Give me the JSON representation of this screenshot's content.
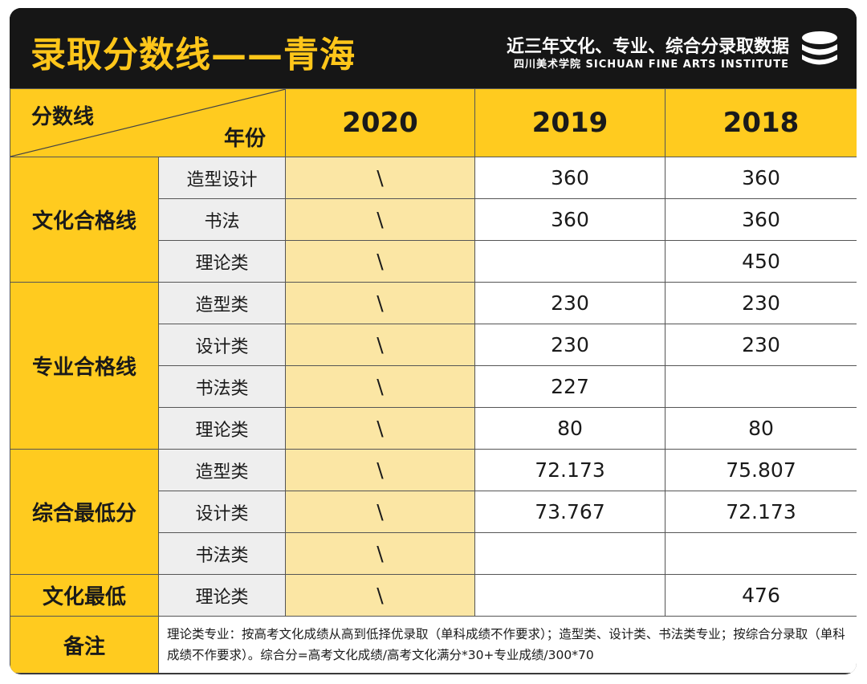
{
  "header": {
    "title": "录取分数线——青海",
    "subtitle_main": "近三年文化、专业、综合分录取数据",
    "subtitle_school": "四川美术学院 SICHUAN FINE ARTS INSTITUTE",
    "logo_icon": "stacked-discs-icon"
  },
  "table": {
    "corner_top": "分数线",
    "corner_bottom": "年份",
    "years": [
      "2020",
      "2019",
      "2018"
    ],
    "groups": [
      {
        "name": "文化合格线",
        "rows": [
          {
            "category": "造型设计",
            "values": [
              "\\",
              "360",
              "360"
            ]
          },
          {
            "category": "书法",
            "values": [
              "\\",
              "360",
              "360"
            ]
          },
          {
            "category": "理论类",
            "values": [
              "\\",
              "",
              "450"
            ]
          }
        ]
      },
      {
        "name": "专业合格线",
        "rows": [
          {
            "category": "造型类",
            "values": [
              "\\",
              "230",
              "230"
            ]
          },
          {
            "category": "设计类",
            "values": [
              "\\",
              "230",
              "230"
            ]
          },
          {
            "category": "书法类",
            "values": [
              "\\",
              "227",
              ""
            ]
          },
          {
            "category": "理论类",
            "values": [
              "\\",
              "80",
              "80"
            ]
          }
        ]
      },
      {
        "name": "综合最低分",
        "rows": [
          {
            "category": "造型类",
            "values": [
              "\\",
              "72.173",
              "75.807"
            ]
          },
          {
            "category": "设计类",
            "values": [
              "\\",
              "73.767",
              "72.173"
            ]
          },
          {
            "category": "书法类",
            "values": [
              "\\",
              "",
              ""
            ]
          }
        ]
      },
      {
        "name": "文化最低",
        "rows": [
          {
            "category": "理论类",
            "values": [
              "\\",
              "",
              "476"
            ]
          }
        ]
      }
    ],
    "note_label": "备注",
    "note_text": "理论类专业：按高考文化成绩从高到低择优录取（单科成绩不作要求）；造型类、设计类、书法类专业；按综合分录取（单科成绩不作要求）。综合分=高考文化成绩/高考文化满分*30+专业成绩/300*70"
  },
  "colors": {
    "accent": "#ffcb1f",
    "pale_accent": "#fbe6a4",
    "header_bg": "#161616"
  }
}
